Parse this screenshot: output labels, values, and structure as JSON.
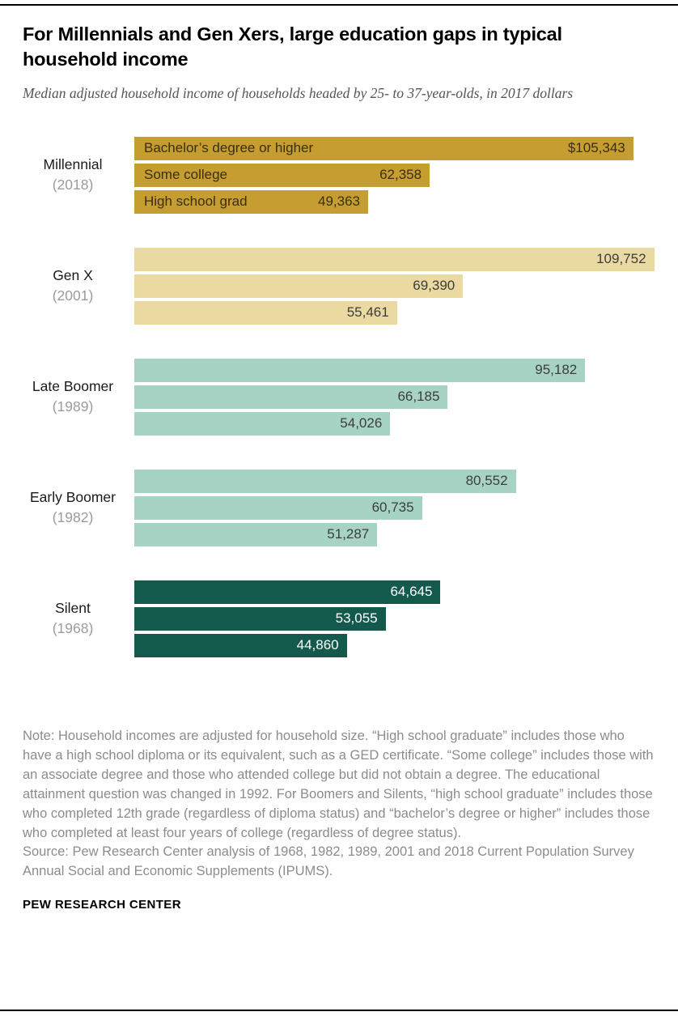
{
  "header": {
    "title": "For Millennials and Gen Xers, large education gaps in typical household income",
    "subtitle": "Median adjusted household income of households headed by 25- to 37-year-olds, in 2017 dollars"
  },
  "chart_data": {
    "type": "bar",
    "orientation": "horizontal",
    "title": "For Millennials and Gen Xers, large education gaps in typical household income",
    "units": "2017 dollars",
    "xmax": 110000,
    "legend_position": "inline-first-group",
    "grid": false,
    "series_labels": [
      "Bachelor’s degree or higher",
      "Some college",
      "High school grad"
    ],
    "groups": [
      {
        "name": "Millennial",
        "year": "(2018)",
        "color": "#C59D30",
        "text_color": "#3A2F10",
        "values": [
          105343,
          62358,
          49363
        ],
        "display": [
          "$105,343",
          "62,358",
          "49,363"
        ]
      },
      {
        "name": "Gen X",
        "year": "(2001)",
        "color": "#EBD9A2",
        "text_color": "#3D3D3D",
        "values": [
          109752,
          69390,
          55461
        ],
        "display": [
          "109,752",
          "69,390",
          "55,461"
        ]
      },
      {
        "name": "Late Boomer",
        "year": "(1989)",
        "color": "#A6D3C3",
        "text_color": "#3D3D3D",
        "values": [
          95182,
          66185,
          54026
        ],
        "display": [
          "95,182",
          "66,185",
          "54,026"
        ]
      },
      {
        "name": "Early Boomer",
        "year": "(1982)",
        "color": "#A6D3C3",
        "text_color": "#3D3D3D",
        "values": [
          80552,
          60735,
          51287
        ],
        "display": [
          "80,552",
          "60,735",
          "51,287"
        ]
      },
      {
        "name": "Silent",
        "year": "(1968)",
        "color": "#145A4C",
        "text_color": "#FFFFFF",
        "values": [
          64645,
          53055,
          44860
        ],
        "display": [
          "64,645",
          "53,055",
          "44,860"
        ]
      }
    ]
  },
  "footer": {
    "note": "Note: Household incomes are adjusted for household size. “High school graduate” includes those who have a high school diploma or its equivalent, such as a GED certificate. “Some college” includes those with an associate degree and those who attended college but did not obtain a degree. The educational attainment question was changed in 1992. For Boomers and Silents, “high school graduate” includes those who completed 12th grade (regardless of diploma status) and “bachelor’s degree or higher” includes those who completed at least four years of college (regardless of degree status).",
    "source": "Source: Pew Research Center analysis of 1968, 1982, 1989, 2001 and 2018 Current Population Survey Annual Social and Economic Supplements (IPUMS).",
    "brand": "PEW RESEARCH CENTER"
  }
}
